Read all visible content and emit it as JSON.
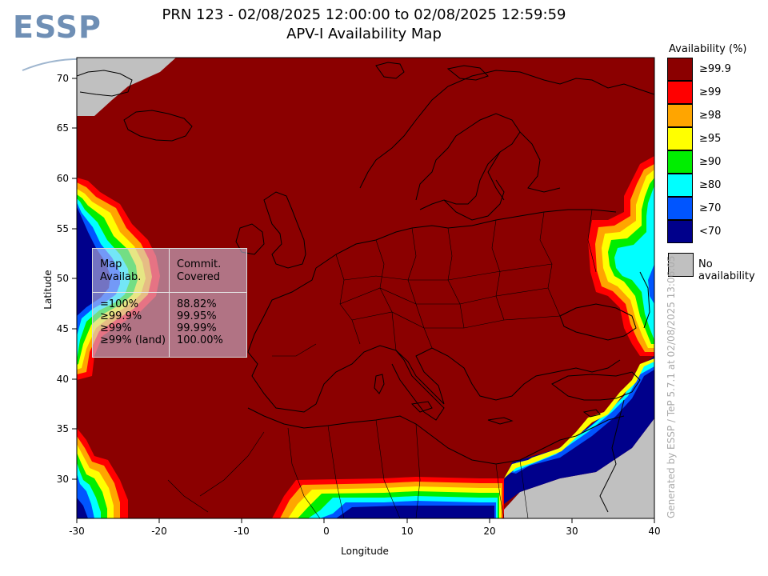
{
  "header": {
    "title_line1": "PRN 123 - 02/08/2025 12:00:00 to 02/08/2025 12:59:59",
    "title_line2": "APV-I Availability Map"
  },
  "logo": {
    "text": "ESSP"
  },
  "axes": {
    "xlabel": "Longitude",
    "ylabel": "Latitude",
    "x_ticks": [
      "-30",
      "-20",
      "-10",
      "0",
      "10",
      "20",
      "30",
      "40"
    ],
    "y_ticks": [
      "70",
      "65",
      "60",
      "55",
      "50",
      "45",
      "40",
      "35",
      "30"
    ],
    "x_range": [
      -30,
      40
    ],
    "y_range": [
      26,
      72
    ]
  },
  "stats_table": {
    "col1_header": [
      "Map",
      "Availab."
    ],
    "col2_header": [
      "Commit.",
      "Covered"
    ],
    "rows": [
      {
        "label": "=100%",
        "value": "88.82%"
      },
      {
        "label": "≥99.9%",
        "value": "99.95%"
      },
      {
        "label": "≥99%",
        "value": "99.99%"
      },
      {
        "label": "≥99% (land)",
        "value": "100.00%"
      }
    ]
  },
  "legend": {
    "title": "Availability (%)",
    "items": [
      {
        "label": "≥99.9",
        "color": "#8b0000"
      },
      {
        "label": "≥99",
        "color": "#ff0000"
      },
      {
        "label": "≥98",
        "color": "#ffa500"
      },
      {
        "label": "≥95",
        "color": "#ffff00"
      },
      {
        "label": "≥90",
        "color": "#00ee00"
      },
      {
        "label": "≥80",
        "color": "#00ffff"
      },
      {
        "label": "≥70",
        "color": "#0055ff"
      },
      {
        "label": "<70",
        "color": "#00008b"
      }
    ],
    "no_availability": {
      "label": "No availability",
      "color": "#c0c0c0"
    }
  },
  "footer": {
    "generated": "Generated by ESSP / TeP 5.7.1 at 02/08/2025 13:06:05"
  }
}
